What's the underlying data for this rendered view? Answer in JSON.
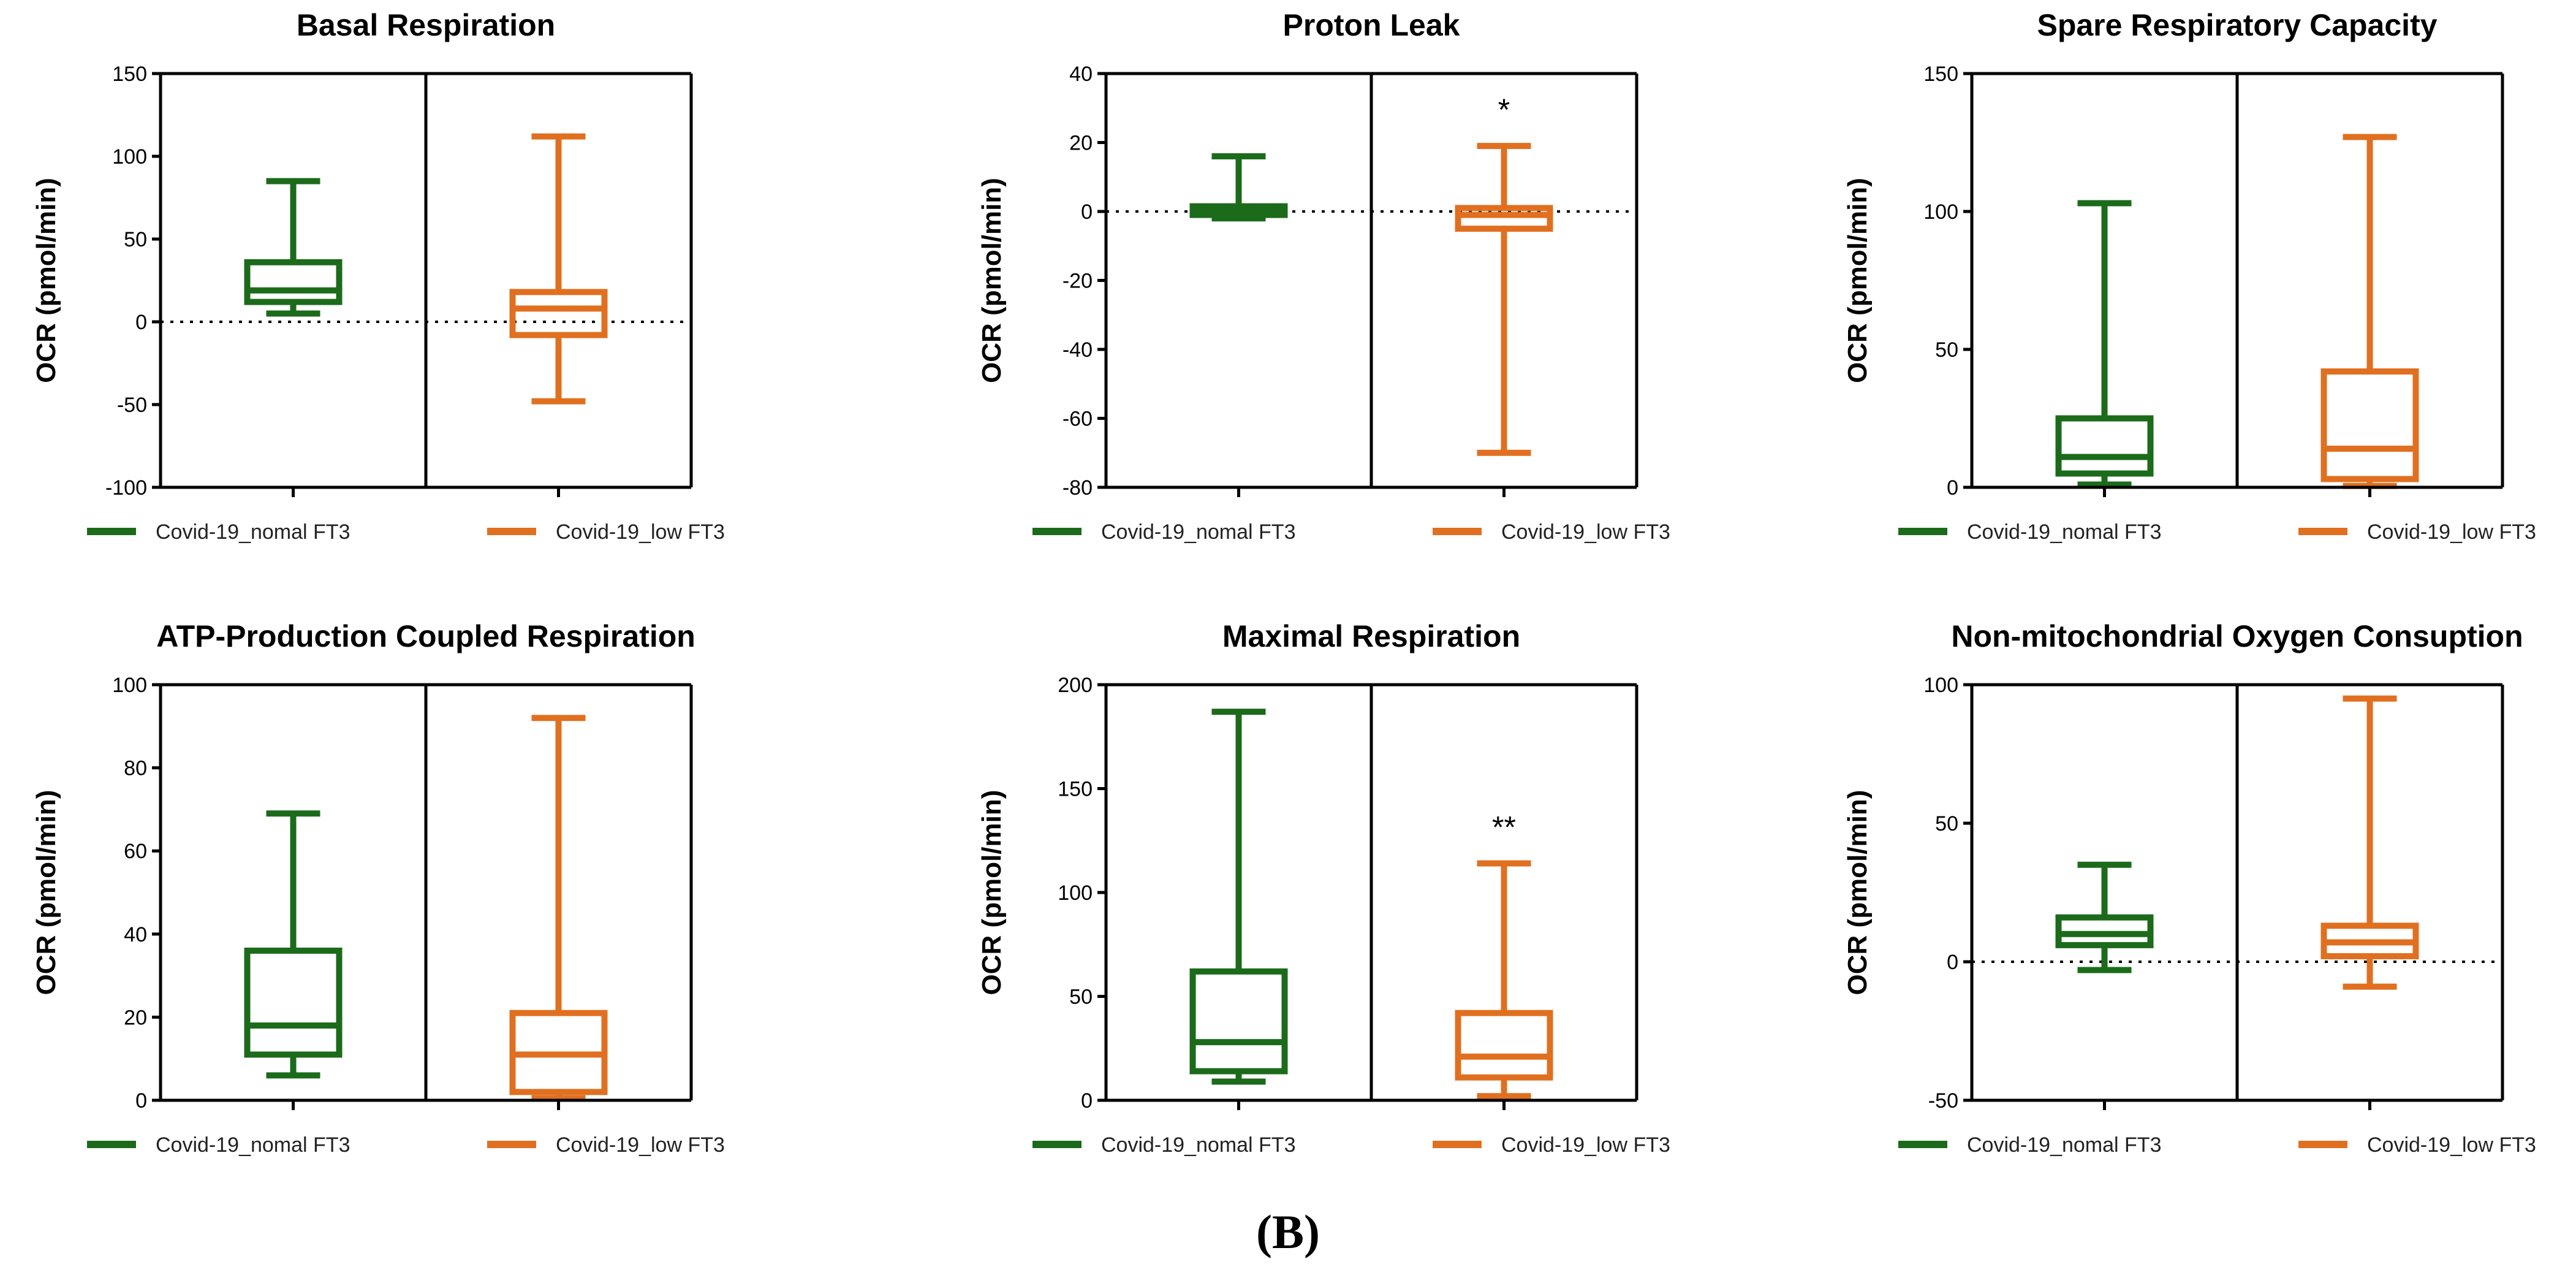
{
  "caption": "(B)",
  "colors": {
    "normal": "#1b6b1b",
    "low": "#e07020",
    "axis": "#000000"
  },
  "chart_data": [
    {
      "type": "box",
      "title": "Basal Respiration",
      "ylabel": "OCR (pmol/min)",
      "ylim": [
        -100,
        150
      ],
      "yticks": [
        -100,
        -50,
        0,
        50,
        100,
        150
      ],
      "zero_line": true,
      "categories": [
        "Covid-19_nomal FT3",
        "Covid-19_low FT3"
      ],
      "series": [
        {
          "name": "Covid-19_nomal FT3",
          "color": "#1b6b1b",
          "min": 5,
          "q1": 12,
          "median": 19,
          "q3": 36,
          "max": 85
        },
        {
          "name": "Covid-19_low FT3",
          "color": "#e07020",
          "min": -48,
          "q1": -8,
          "median": 8,
          "q3": 18,
          "max": 112
        }
      ],
      "annotations": []
    },
    {
      "type": "box",
      "title": "Proton Leak",
      "ylabel": "OCR (pmol/min)",
      "ylim": [
        -80,
        40
      ],
      "yticks": [
        -80,
        -60,
        -40,
        -20,
        0,
        20,
        40
      ],
      "zero_line": true,
      "categories": [
        "Covid-19_nomal FT3",
        "Covid-19_low FT3"
      ],
      "series": [
        {
          "name": "Covid-19_nomal FT3",
          "color": "#1b6b1b",
          "min": -2,
          "q1": -1,
          "median": 0.5,
          "q3": 1.5,
          "max": 16
        },
        {
          "name": "Covid-19_low FT3",
          "color": "#e07020",
          "min": -70,
          "q1": -5,
          "median": -1,
          "q3": 1,
          "max": 19
        }
      ],
      "annotations": [
        {
          "series": 1,
          "text": "*"
        }
      ]
    },
    {
      "type": "box",
      "title": "Spare Respiratory Capacity",
      "ylabel": "OCR (pmol/min)",
      "ylim": [
        0,
        150
      ],
      "yticks": [
        0,
        50,
        100,
        150
      ],
      "zero_line": false,
      "categories": [
        "Covid-19_nomal FT3",
        "Covid-19_low FT3"
      ],
      "series": [
        {
          "name": "Covid-19_nomal FT3",
          "color": "#1b6b1b",
          "min": 1,
          "q1": 5,
          "median": 11,
          "q3": 25,
          "max": 103
        },
        {
          "name": "Covid-19_low FT3",
          "color": "#e07020",
          "min": 0.5,
          "q1": 3,
          "median": 14,
          "q3": 42,
          "max": 127
        }
      ],
      "annotations": []
    },
    {
      "type": "box",
      "title": "ATP-Production Coupled Respiration",
      "ylabel": "OCR (pmol/min)",
      "ylim": [
        0,
        100
      ],
      "yticks": [
        0,
        20,
        40,
        60,
        80,
        100
      ],
      "zero_line": false,
      "categories": [
        "Covid-19_nomal FT3",
        "Covid-19_low FT3"
      ],
      "series": [
        {
          "name": "Covid-19_nomal FT3",
          "color": "#1b6b1b",
          "min": 6,
          "q1": 11,
          "median": 18,
          "q3": 36,
          "max": 69
        },
        {
          "name": "Covid-19_low FT3",
          "color": "#e07020",
          "min": 0.5,
          "q1": 2,
          "median": 11,
          "q3": 21,
          "max": 92
        }
      ],
      "annotations": []
    },
    {
      "type": "box",
      "title": "Maximal Respiration",
      "ylabel": "OCR (pmol/min)",
      "ylim": [
        0,
        200
      ],
      "yticks": [
        0,
        50,
        100,
        150,
        200
      ],
      "zero_line": false,
      "categories": [
        "Covid-19_nomal FT3",
        "Covid-19_low FT3"
      ],
      "series": [
        {
          "name": "Covid-19_nomal FT3",
          "color": "#1b6b1b",
          "min": 9,
          "q1": 14,
          "median": 28,
          "q3": 62,
          "max": 187
        },
        {
          "name": "Covid-19_low FT3",
          "color": "#e07020",
          "min": 2,
          "q1": 11,
          "median": 21,
          "q3": 42,
          "max": 114
        }
      ],
      "annotations": [
        {
          "series": 1,
          "text": "**"
        }
      ]
    },
    {
      "type": "box",
      "title": "Non-mitochondrial Oxygen Consuption",
      "ylabel": "OCR (pmol/min)",
      "ylim": [
        -50,
        100
      ],
      "yticks": [
        -50,
        0,
        50,
        100
      ],
      "zero_line": true,
      "categories": [
        "Covid-19_nomal FT3",
        "Covid-19_low FT3"
      ],
      "series": [
        {
          "name": "Covid-19_nomal FT3",
          "color": "#1b6b1b",
          "min": -3,
          "q1": 6,
          "median": 10,
          "q3": 16,
          "max": 35
        },
        {
          "name": "Covid-19_low FT3",
          "color": "#e07020",
          "min": -9,
          "q1": 2,
          "median": 7,
          "q3": 13,
          "max": 95
        }
      ],
      "annotations": []
    }
  ]
}
